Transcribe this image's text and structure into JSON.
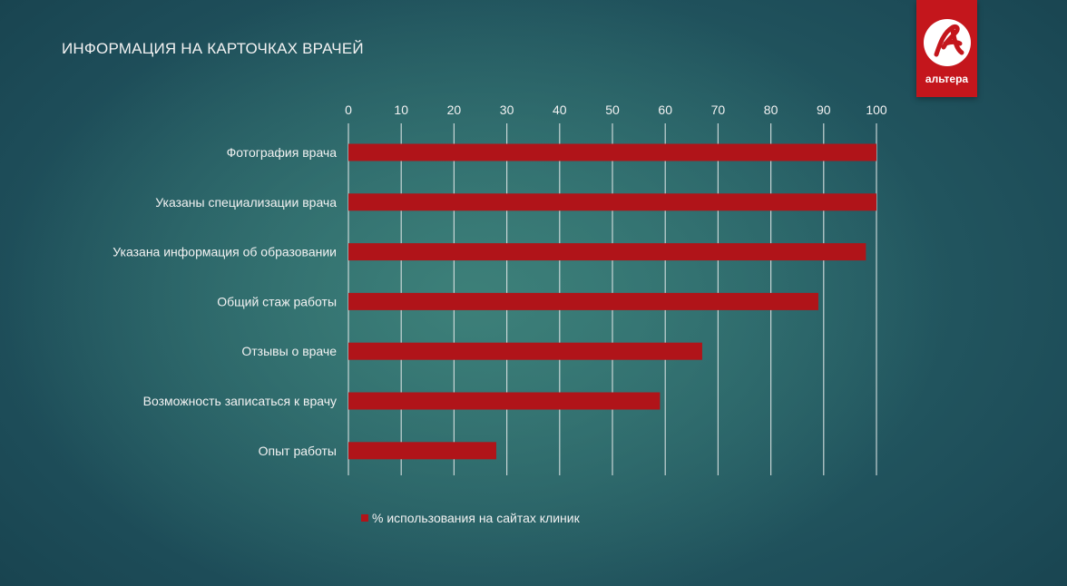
{
  "slide": {
    "title": "ИНФОРМАЦИЯ НА КАРТОЧКАХ ВРАЧЕЙ"
  },
  "logo": {
    "text": "альтера",
    "color": "#c4161c"
  },
  "chart_data": {
    "type": "bar",
    "orientation": "horizontal",
    "categories": [
      "Фотография врача",
      "Указаны специализации врача",
      "Указана информация об образовании",
      "Общий стаж работы",
      "Отзывы о враче",
      "Возможность записаться к врачу",
      "Опыт работы"
    ],
    "series": [
      {
        "name": "% использования на сайтах клиник",
        "values": [
          100,
          100,
          98,
          89,
          67,
          59,
          28
        ],
        "color": "#b01419"
      }
    ],
    "xlim": [
      0,
      100
    ],
    "xticks": [
      "0",
      "10",
      "20",
      "30",
      "40",
      "50",
      "60",
      "70",
      "80",
      "90",
      "100"
    ],
    "axis_position": "top",
    "grid": true,
    "legend_position": "bottom"
  }
}
